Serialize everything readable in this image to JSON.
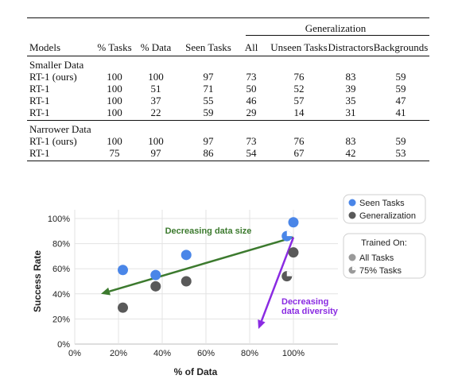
{
  "table": {
    "group_header": "Generalization",
    "columns": [
      "Models",
      "% Tasks",
      "% Data",
      "Seen Tasks",
      "All",
      "Unseen Tasks",
      "Distractors",
      "Backgrounds"
    ],
    "sections": [
      {
        "title": "Smaller Data",
        "rows": [
          [
            "RT-1 (ours)",
            "100",
            "100",
            "97",
            "73",
            "76",
            "83",
            "59"
          ],
          [
            "RT-1",
            "100",
            "51",
            "71",
            "50",
            "52",
            "39",
            "59"
          ],
          [
            "RT-1",
            "100",
            "37",
            "55",
            "46",
            "57",
            "35",
            "47"
          ],
          [
            "RT-1",
            "100",
            "22",
            "59",
            "29",
            "14",
            "31",
            "41"
          ]
        ]
      },
      {
        "title": "Narrower Data",
        "rows": [
          [
            "RT-1 (ours)",
            "100",
            "100",
            "97",
            "73",
            "76",
            "83",
            "59"
          ],
          [
            "RT-1",
            "75",
            "97",
            "86",
            "54",
            "67",
            "42",
            "53"
          ]
        ]
      }
    ]
  },
  "chart_data": {
    "type": "scatter",
    "xlabel": "% of Data",
    "ylabel": "Success Rate",
    "xlim": [
      0,
      100
    ],
    "ylim": [
      0,
      100
    ],
    "xticks": [
      "0%",
      "20%",
      "40%",
      "60%",
      "80%",
      "100%"
    ],
    "yticks": [
      "0%",
      "20%",
      "40%",
      "60%",
      "80%",
      "100%"
    ],
    "grid": true,
    "colors": {
      "seen": "#4a86e8",
      "generalization": "#595959",
      "green_arrow": "#3c7a2e",
      "purple_arrow": "#8a2be2"
    },
    "series": [
      {
        "name": "Seen Tasks",
        "key": "seen",
        "points": [
          {
            "x": 22,
            "y": 59,
            "trained_on": "All Tasks"
          },
          {
            "x": 37,
            "y": 55,
            "trained_on": "All Tasks"
          },
          {
            "x": 51,
            "y": 71,
            "trained_on": "All Tasks"
          },
          {
            "x": 100,
            "y": 97,
            "trained_on": "All Tasks"
          },
          {
            "x": 97,
            "y": 86,
            "trained_on": "75% Tasks"
          }
        ]
      },
      {
        "name": "Generalization",
        "key": "generalization",
        "points": [
          {
            "x": 22,
            "y": 29,
            "trained_on": "All Tasks"
          },
          {
            "x": 37,
            "y": 46,
            "trained_on": "All Tasks"
          },
          {
            "x": 51,
            "y": 50,
            "trained_on": "All Tasks"
          },
          {
            "x": 100,
            "y": 73,
            "trained_on": "All Tasks"
          },
          {
            "x": 97,
            "y": 54,
            "trained_on": "75% Tasks"
          }
        ]
      }
    ],
    "arrows": [
      {
        "label": "Decreasing data size",
        "from": [
          100,
          85
        ],
        "to": [
          12,
          40
        ]
      },
      {
        "label": "Decreasing data diversity",
        "from": [
          100,
          85
        ],
        "to": [
          84,
          12
        ]
      }
    ],
    "legend": {
      "placement": "right",
      "series_entries": [
        "Seen Tasks",
        "Generalization"
      ],
      "trained_on_title": "Trained On:",
      "trained_on_entries": [
        "All Tasks",
        "75% Tasks"
      ]
    }
  }
}
